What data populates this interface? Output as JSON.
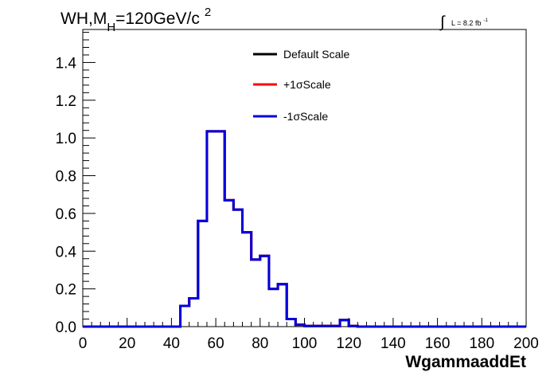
{
  "chart_data": {
    "type": "line",
    "title_main": "WH,M",
    "title_sub": "H",
    "title_rest": "=120GeV/c",
    "title_sup": "2",
    "lumi_symbol": "∫",
    "lumi_text": "L = 8.2 fb",
    "lumi_sup": "-1",
    "xlabel": "WgammaaddEt",
    "ylabel": "",
    "xlim": [
      0,
      200
    ],
    "ylim": [
      0,
      1.575
    ],
    "x_ticks": [
      0,
      20,
      40,
      60,
      80,
      100,
      120,
      140,
      160,
      180,
      200
    ],
    "x_tick_labels": [
      "0",
      "20",
      "40",
      "60",
      "80",
      "100",
      "120",
      "140",
      "160",
      "180",
      "200"
    ],
    "y_ticks": [
      0,
      0.2,
      0.4,
      0.6,
      0.8,
      1.0,
      1.2,
      1.4
    ],
    "y_tick_labels": [
      "0.0",
      "0.2",
      "0.4",
      "0.6",
      "0.8",
      "1.0",
      "1.2",
      "1.4"
    ],
    "grid": false,
    "legend_position": "top-center",
    "bin_edges": [
      0,
      4,
      8,
      12,
      16,
      20,
      24,
      28,
      32,
      36,
      40,
      44,
      48,
      52,
      56,
      60,
      64,
      68,
      72,
      76,
      80,
      84,
      88,
      92,
      96,
      100,
      104,
      108,
      112,
      116,
      120,
      124,
      128,
      132,
      136,
      140,
      144,
      148,
      152,
      156,
      160,
      164,
      168,
      172,
      176,
      180,
      184,
      188,
      192,
      196,
      200
    ],
    "series": [
      {
        "name": "Default Scale",
        "color": "#000000",
        "values": [
          0,
          0,
          0,
          0,
          0,
          0,
          0,
          0,
          0,
          0,
          0,
          0.11,
          0.15,
          0.56,
          1.035,
          1.035,
          0.67,
          0.62,
          0.5,
          0.355,
          0.375,
          0.2,
          0.225,
          0.04,
          0.01,
          0.003,
          0.003,
          0.003,
          0.003,
          0.035,
          0.003,
          0,
          0,
          0,
          0,
          0,
          0,
          0,
          0,
          0,
          0,
          0,
          0,
          0,
          0,
          0,
          0,
          0,
          0,
          0
        ]
      },
      {
        "name": "+1σScale",
        "color": "#ff0000",
        "values": [
          0,
          0,
          0,
          0,
          0,
          0,
          0,
          0,
          0,
          0,
          0,
          0.11,
          0.15,
          0.56,
          1.035,
          1.035,
          0.67,
          0.62,
          0.5,
          0.355,
          0.375,
          0.2,
          0.225,
          0.04,
          0.01,
          0.003,
          0.003,
          0.003,
          0.003,
          0.035,
          0.003,
          0,
          0,
          0,
          0,
          0,
          0,
          0,
          0,
          0,
          0,
          0,
          0,
          0,
          0,
          0,
          0,
          0,
          0,
          0
        ]
      },
      {
        "name": "-1σScale",
        "color": "#0000dd",
        "values": [
          0,
          0,
          0,
          0,
          0,
          0,
          0,
          0,
          0,
          0,
          0,
          0.11,
          0.15,
          0.56,
          1.035,
          1.035,
          0.67,
          0.62,
          0.5,
          0.355,
          0.375,
          0.2,
          0.225,
          0.04,
          0.01,
          0.003,
          0.003,
          0.003,
          0.003,
          0.035,
          0.003,
          0,
          0,
          0,
          0,
          0,
          0,
          0,
          0,
          0,
          0,
          0,
          0,
          0,
          0,
          0,
          0,
          0,
          0,
          0
        ]
      }
    ]
  }
}
